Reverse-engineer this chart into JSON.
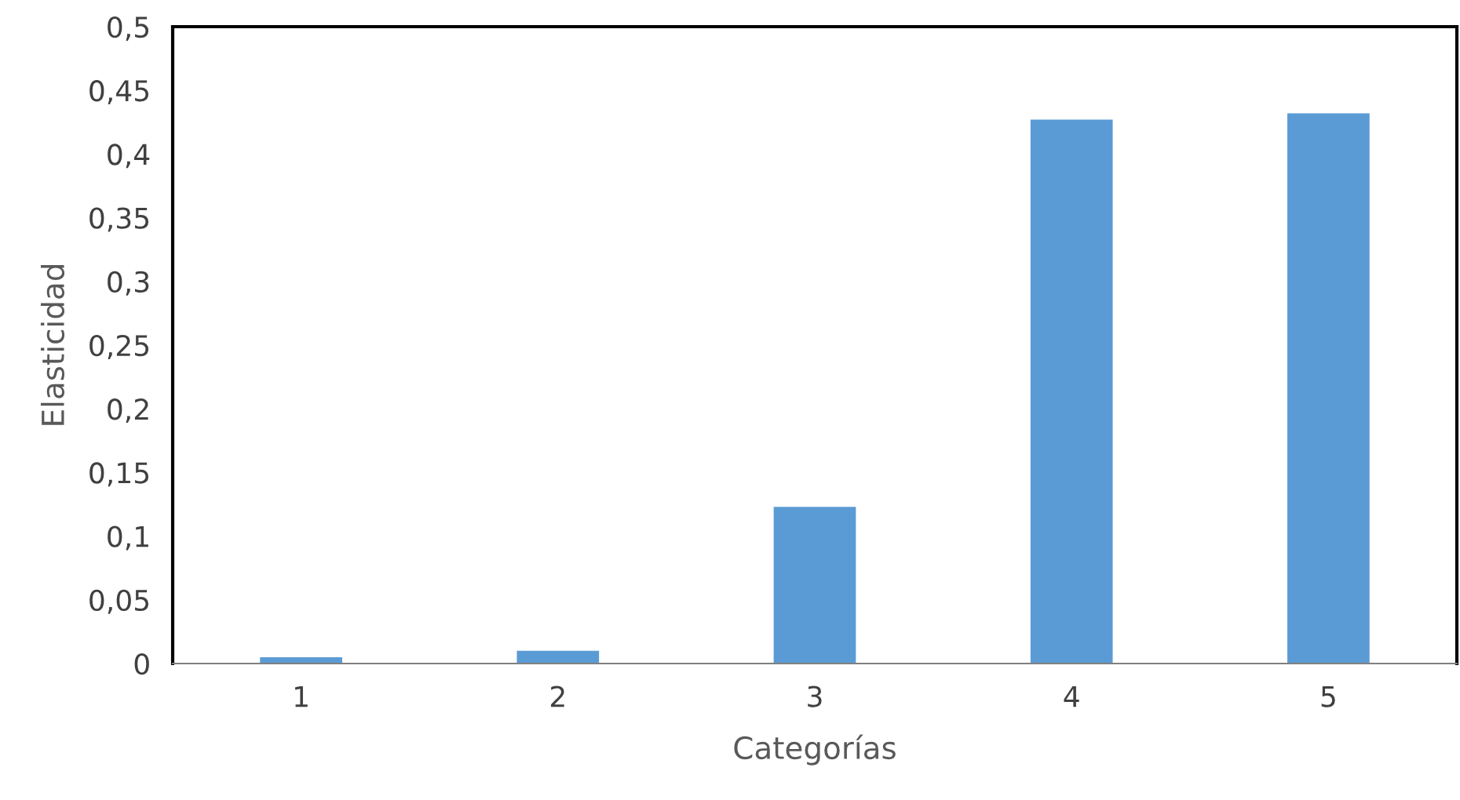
{
  "chart_data": {
    "type": "bar",
    "xlabel": "Categorías",
    "ylabel": "Elasticidad",
    "categories": [
      "1",
      "2",
      "3",
      "4",
      "5"
    ],
    "values": [
      0.005,
      0.01,
      0.123,
      0.427,
      0.432
    ],
    "color": "#5b9bd5",
    "ylim": [
      0,
      0.5
    ],
    "yticks": [
      0,
      {
        "value": 0.05,
        "label": "0,05"
      },
      {
        "value": 0.1,
        "label": "0,1"
      },
      {
        "value": 0.15,
        "label": "0,15"
      },
      {
        "value": 0.2,
        "label": "0,2"
      },
      {
        "value": 0.25,
        "label": "0,25"
      },
      {
        "value": 0.3,
        "label": "0,3"
      },
      {
        "value": 0.35,
        "label": "0,35"
      },
      {
        "value": 0.4,
        "label": "0,4"
      },
      {
        "value": 0.45,
        "label": "0,45"
      },
      {
        "value": 0.5,
        "label": "0,5"
      }
    ],
    "grid": false,
    "legend": false
  }
}
